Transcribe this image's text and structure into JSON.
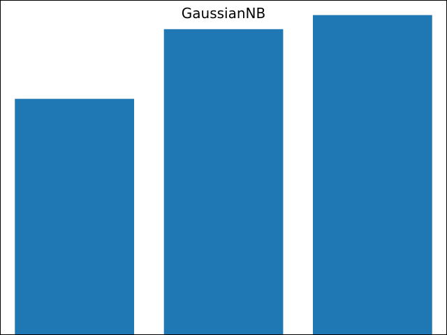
{
  "chart_data": {
    "type": "bar",
    "title": "GaussianNB",
    "xlabel": "",
    "ylabel": "",
    "categories": [
      "",
      "",
      ""
    ],
    "values": [
      0.705,
      0.913,
      0.955
    ],
    "ylim": [
      0,
      1.0
    ],
    "bar_color": "#1f77b4",
    "axis_color": "#000000",
    "grid": false,
    "legend": "none"
  }
}
